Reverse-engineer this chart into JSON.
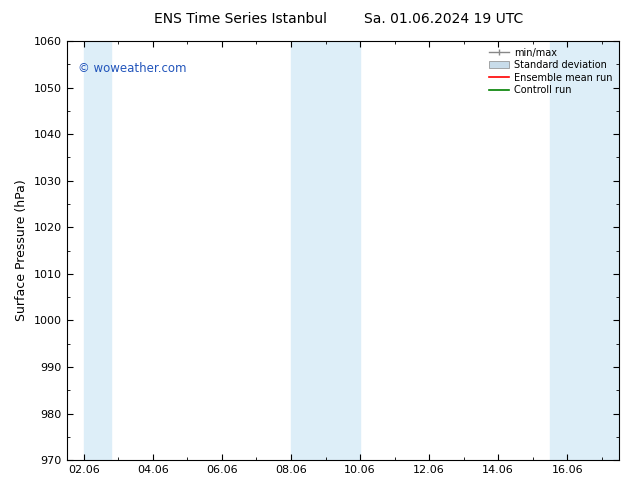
{
  "title_left": "ENS Time Series Istanbul",
  "title_right": "Sa. 01.06.2024 19 UTC",
  "ylabel": "Surface Pressure (hPa)",
  "ylim": [
    970,
    1060
  ],
  "yticks": [
    970,
    980,
    990,
    1000,
    1010,
    1020,
    1030,
    1040,
    1050,
    1060
  ],
  "xlim_start": 1.5,
  "xlim_end": 17.5,
  "xtick_labels": [
    "02.06",
    "04.06",
    "06.06",
    "08.06",
    "10.06",
    "12.06",
    "14.06",
    "16.06"
  ],
  "xtick_positions": [
    2,
    4,
    6,
    8,
    10,
    12,
    14,
    16
  ],
  "shaded_bands": [
    {
      "x_start": 2.0,
      "x_end": 2.8
    },
    {
      "x_start": 8.0,
      "x_end": 10.0
    },
    {
      "x_start": 15.5,
      "x_end": 17.5
    }
  ],
  "shaded_color": "#ddeef8",
  "watermark_text": "© woweather.com",
  "watermark_color": "#2255bb",
  "legend_items": [
    {
      "label": "min/max",
      "color": "#aaaaaa",
      "style": "errorbar"
    },
    {
      "label": "Standard deviation",
      "color": "#c8dcea",
      "style": "rect"
    },
    {
      "label": "Ensemble mean run",
      "color": "red",
      "style": "line"
    },
    {
      "label": "Controll run",
      "color": "green",
      "style": "line"
    }
  ],
  "bg_color": "#ffffff",
  "plot_bg_color": "#ffffff",
  "tick_label_fontsize": 8,
  "axis_label_fontsize": 9,
  "title_fontsize": 10
}
